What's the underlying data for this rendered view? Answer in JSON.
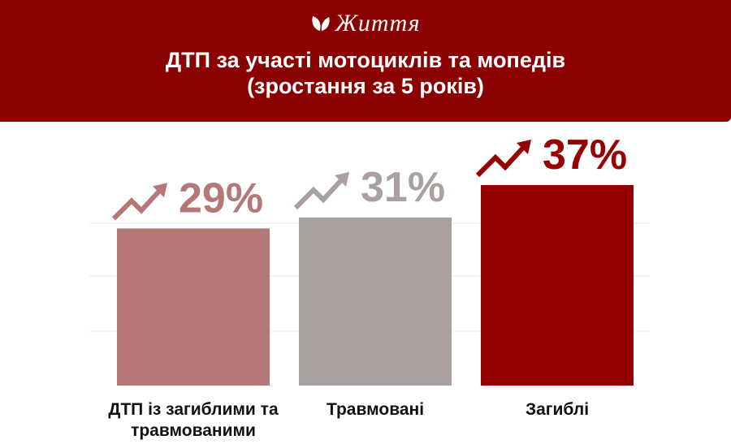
{
  "brand": {
    "name": "Життя",
    "logo_icon": "leaf-icon"
  },
  "header": {
    "title_line1": "ДТП за участі мотоциклів та мопедів",
    "title_line2": "(зростання за 5 років)"
  },
  "chart_data": {
    "type": "bar",
    "categories": [
      [
        "ДТП із загиблими та",
        "травмованими"
      ],
      [
        "Травмовані"
      ],
      [
        "Загиблі"
      ]
    ],
    "values": [
      29,
      31,
      37
    ],
    "value_labels": [
      "29%",
      "31%",
      "37%"
    ],
    "colors": [
      "#b57777",
      "#aaa09f",
      "#960000"
    ],
    "ylim": [
      0,
      37
    ],
    "grid": true,
    "legend": "none"
  }
}
